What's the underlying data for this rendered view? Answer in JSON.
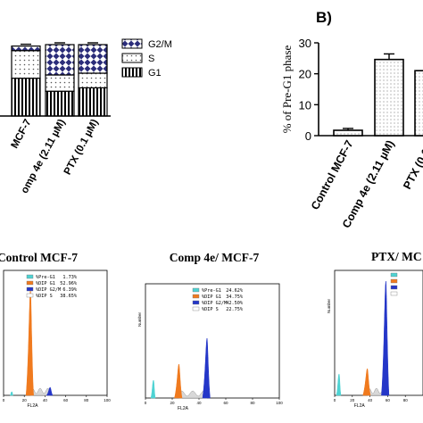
{
  "panel_b_label": "B)",
  "chart_data": [
    {
      "type": "bar",
      "stacked": true,
      "title": "",
      "categories": [
        "Control MCF-7",
        "Comp 4e (2.11 µM)",
        "PTX (0.1 µM)"
      ],
      "category_labels_visible": [
        "MCF-7",
        "omp 4e (2.11 µM)",
        "PTX (0.1 µM)"
      ],
      "series": [
        {
          "name": "G1",
          "values": [
            52.96,
            34.75,
            39.5
          ]
        },
        {
          "name": "S",
          "values": [
            38.65,
            22.75,
            20.5
          ]
        },
        {
          "name": "G2/M",
          "values": [
            6.39,
            42.5,
            40.0
          ]
        }
      ],
      "ylim": [
        0,
        100
      ],
      "legend": {
        "position": "top-right",
        "entries": [
          "G2/M",
          "S",
          "G1"
        ]
      }
    },
    {
      "type": "bar",
      "title": "",
      "ylabel": "% of Pre-G1 phase",
      "categories": [
        "Control MCF-7",
        "Comp 4e (2.11 µM)",
        "PTX (0.1 µM)"
      ],
      "category_labels_visible": [
        "Control MCF-7",
        "Comp 4e (2.11 µM)",
        "PTX (0.1 µ"
      ],
      "values": [
        1.73,
        24.62,
        21.0
      ],
      "errors": [
        0.6,
        1.8,
        1.5
      ],
      "ylim": [
        0,
        30
      ],
      "yticks": [
        0,
        10,
        20,
        30
      ]
    },
    {
      "type": "area",
      "title": "Control MCF-7",
      "xlabel": "FL2A",
      "ylabel": "Number",
      "xlim": [
        0,
        100
      ],
      "legend": [
        {
          "label": "%Pre-G1",
          "value": "1.73%"
        },
        {
          "label": "%DIP G1",
          "value": "52.96%"
        },
        {
          "label": "%DIP G2/M",
          "value": "6.39%"
        },
        {
          "label": "%DIP S",
          "value": "38.65%"
        }
      ],
      "xticks": [
        "0",
        "20",
        "40",
        "60",
        "80",
        "100"
      ]
    },
    {
      "type": "area",
      "title": "Comp 4e/ MCF-7",
      "xlabel": "FL2A",
      "ylabel": "Number",
      "xlim": [
        0,
        100
      ],
      "legend": [
        {
          "label": "%Pre-G1",
          "value": "24.62%"
        },
        {
          "label": "%DIP G1",
          "value": "34.75%"
        },
        {
          "label": "%DIP G2/M",
          "value": "42.50%"
        },
        {
          "label": "%DIP S",
          "value": "22.75%"
        }
      ],
      "xticks": [
        "0",
        "20",
        "40",
        "60",
        "80",
        "100"
      ]
    },
    {
      "type": "area",
      "title": "PTX/ MC",
      "xlabel": "FL2A",
      "ylabel": "Number",
      "xlim": [
        0,
        100
      ],
      "legend": [
        {
          "label": "",
          "value": ""
        },
        {
          "label": "",
          "value": ""
        },
        {
          "label": "",
          "value": ""
        },
        {
          "label": "",
          "value": ""
        }
      ],
      "xticks": [
        "0",
        "20",
        "40",
        "60",
        "80"
      ]
    }
  ],
  "colors": {
    "g2m_fill": "#2b2d7a",
    "pre_g1": "#4ed3d3",
    "g1": "#f07a1e",
    "g2m": "#2436c8",
    "s": "#c8c8c8"
  }
}
